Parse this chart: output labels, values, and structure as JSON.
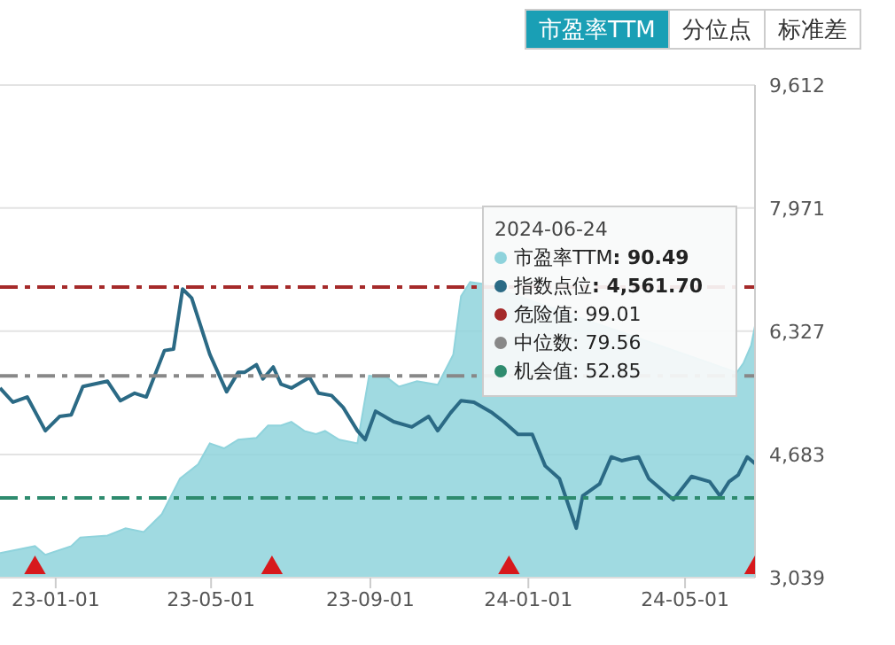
{
  "chart_data": {
    "type": "line",
    "annotations": [
      "市盈率TTM",
      "分位点",
      "标准差",
      "2024-06-24",
      ": 90.49",
      ": 4,561.70"
    ],
    "legend": "right",
    "xlim": [
      "2022-11-19",
      "2024-06-24"
    ],
    "xticks": [
      {
        "value": "2023-01-01",
        "label": "23-01-01"
      },
      {
        "value": "2023-05-01",
        "label": "23-05-01"
      },
      {
        "value": "2023-09-01",
        "label": "23-09-01"
      },
      {
        "value": "2024-01-01",
        "label": "24-01-01"
      },
      {
        "value": "2024-05-01",
        "label": "24-05-01"
      }
    ],
    "ylim": [
      3039,
      9612
    ],
    "yticks": [
      {
        "value": 3039,
        "label": "3,039"
      },
      {
        "value": 4683,
        "label": "4,683"
      },
      {
        "value": 6327,
        "label": "6,327"
      },
      {
        "value": 7971,
        "label": "7,971"
      },
      {
        "value": 9612,
        "label": "9,612"
      }
    ],
    "y2lim": [
      35.4,
      143.2
    ],
    "grid": "y",
    "series": [
      {
        "name": "市盈率TTM",
        "type": "area",
        "axis": "y2",
        "color": "#8fd3dc",
        "x": [
          "2022-11-19",
          "2022-12-16",
          "2022-12-24",
          "2023-01-13",
          "2023-01-20",
          "2023-02-10",
          "2023-02-24",
          "2023-03-10",
          "2023-03-24",
          "2023-04-07",
          "2023-04-21",
          "2023-04-30",
          "2023-05-11",
          "2023-05-22",
          "2023-06-05",
          "2023-06-14",
          "2023-06-24",
          "2023-07-02",
          "2023-07-12",
          "2023-07-21",
          "2023-07-28",
          "2023-08-08",
          "2023-08-22",
          "2023-08-31",
          "2023-09-14",
          "2023-09-23",
          "2023-10-07",
          "2023-10-23",
          "2023-11-04",
          "2023-11-10",
          "2023-11-17",
          "2023-11-27",
          "2024-01-15",
          "2024-04-01",
          "2024-06-10",
          "2024-06-15",
          "2024-06-21",
          "2024-06-24"
        ],
        "values": [
          40.8,
          42.3,
          40.4,
          42.3,
          44.2,
          44.6,
          46.2,
          45.4,
          49.3,
          57.1,
          60.2,
          64.8,
          63.7,
          65.6,
          66.0,
          68.7,
          68.7,
          69.5,
          67.5,
          66.8,
          67.5,
          65.6,
          64.8,
          79.6,
          79.2,
          77.2,
          78.4,
          77.6,
          84.2,
          97.0,
          100.1,
          99.7,
          null,
          null,
          80.3,
          82.3,
          86.2,
          90.49
        ]
      },
      {
        "name": "指数点位",
        "color": "#2b6a85",
        "x": [
          "2022-11-19",
          "2022-11-29",
          "2022-12-10",
          "2022-12-24",
          "2023-01-04",
          "2023-01-13",
          "2023-01-22",
          "2023-02-10",
          "2023-02-20",
          "2023-03-03",
          "2023-03-12",
          "2023-03-26",
          "2023-04-02",
          "2023-04-09",
          "2023-04-16",
          "2023-04-30",
          "2023-05-13",
          "2023-05-22",
          "2023-05-27",
          "2023-06-05",
          "2023-06-10",
          "2023-06-18",
          "2023-06-24",
          "2023-07-02",
          "2023-07-16",
          "2023-07-23",
          "2023-08-02",
          "2023-08-11",
          "2023-08-22",
          "2023-08-28",
          "2023-09-05",
          "2023-09-19",
          "2023-10-03",
          "2023-10-16",
          "2023-10-23",
          "2023-11-02",
          "2023-11-10",
          "2023-11-20",
          "2023-12-04",
          "2023-12-13",
          "2023-12-24",
          "2024-01-04",
          "2024-01-14",
          "2024-01-25",
          "2024-02-07",
          "2024-02-12",
          "2024-02-25",
          "2024-03-05",
          "2024-03-13",
          "2024-03-26",
          "2024-04-03",
          "2024-04-22",
          "2024-05-06",
          "2024-05-20",
          "2024-05-28",
          "2024-06-04",
          "2024-06-11",
          "2024-06-18",
          "2024-06-24"
        ],
        "values": [
          5570,
          5380,
          5450,
          5000,
          5190,
          5210,
          5590,
          5660,
          5400,
          5500,
          5450,
          6070,
          6090,
          6890,
          6770,
          6020,
          5520,
          5780,
          5780,
          5880,
          5690,
          5850,
          5620,
          5570,
          5710,
          5500,
          5470,
          5310,
          5000,
          4880,
          5260,
          5120,
          5050,
          5190,
          5000,
          5240,
          5400,
          5380,
          5240,
          5120,
          4950,
          4950,
          4530,
          4360,
          3700,
          4130,
          4290,
          4650,
          4600,
          4650,
          4360,
          4080,
          4390,
          4320,
          4130,
          4320,
          4410,
          4650,
          4561.7
        ]
      },
      {
        "type": "scatter",
        "marker": "triangle",
        "color": "#d7191c",
        "x": [
          "2022-12-16",
          "2023-06-17",
          "2023-12-17",
          "2024-06-24"
        ],
        "values": [
          3170,
          3170,
          3170,
          3170
        ]
      }
    ],
    "ref_lines": [
      {
        "axis": "y2",
        "value": 99.01,
        "label": "危险值: 99.01",
        "color": "#a52a2a",
        "line_style": "dashed"
      },
      {
        "axis": "y2",
        "value": 79.56,
        "label": "中位数: 79.56",
        "color": "#888888",
        "line_style": "dashed"
      },
      {
        "axis": "y2",
        "value": 52.85,
        "label": "机会值: 52.85",
        "color": "#2e8b6e",
        "line_style": "dashed"
      }
    ]
  }
}
